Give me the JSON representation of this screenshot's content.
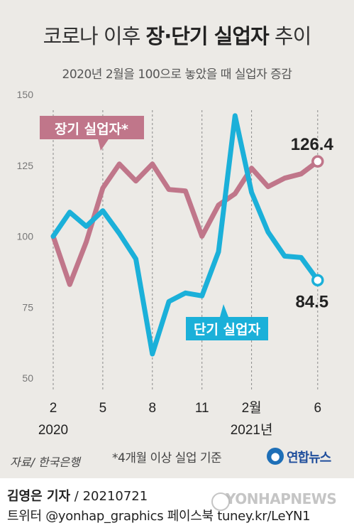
{
  "header": {
    "title_prefix": "코로나 이후 ",
    "title_bold": "장·단기 실업자",
    "title_suffix": " 추이",
    "subtitle": "2020년 2월을 100으로 놓았을 때 실업자 증감"
  },
  "colors": {
    "long_term": "#c0768a",
    "short_term": "#1bb0d9",
    "background": "#eceae6"
  },
  "chart_data": {
    "type": "line",
    "x": [
      "2020-02",
      "2020-03",
      "2020-04",
      "2020-05",
      "2020-06",
      "2020-07",
      "2020-08",
      "2020-09",
      "2020-10",
      "2020-11",
      "2020-12",
      "2021-01",
      "2021-02",
      "2021-03",
      "2021-04",
      "2021-05",
      "2021-06"
    ],
    "x_tick_labels": [
      {
        "x": "2020-02",
        "label": "2"
      },
      {
        "x": "2020-05",
        "label": "5"
      },
      {
        "x": "2020-08",
        "label": "8"
      },
      {
        "x": "2020-11",
        "label": "11"
      },
      {
        "x": "2021-02",
        "label": "2월"
      },
      {
        "x": "2021-06",
        "label": "6"
      }
    ],
    "year_labels": [
      {
        "x": "2020-02",
        "label": "2020"
      },
      {
        "x": "2021-02",
        "label": "2021년"
      }
    ],
    "ylim": [
      50,
      150
    ],
    "y_ticks": [
      50,
      75,
      100,
      125,
      150
    ],
    "series": [
      {
        "name": "장기 실업자*",
        "color": "#c0768a",
        "values": [
          100,
          83,
          98,
          117,
          125.5,
          119.5,
          125.5,
          116.5,
          116,
          100,
          111,
          115,
          124,
          117.5,
          120.5,
          122,
          126.4
        ],
        "end_label": "126.4"
      },
      {
        "name": "단기 실업자",
        "color": "#1bb0d9",
        "values": [
          100,
          108.5,
          103.5,
          109,
          101,
          92,
          58.5,
          77,
          80,
          79,
          94.5,
          142.5,
          115.5,
          101.5,
          93,
          92.5,
          84.5
        ],
        "end_label": "84.5"
      }
    ],
    "grid": "vertical dashed at labeled months",
    "legend": "callout boxes"
  },
  "footer": {
    "source": "자료/ 한국은행",
    "note": "*4개월 이상 실업 기준",
    "logo_text": "연합뉴스",
    "reporter_name": "김영은 기자",
    "reporter_date": " / 20210721",
    "social": "트위터 @yonhap_graphics  페이스북 tuney.kr/LeYN1",
    "watermark": "YONHAPNEWS"
  }
}
